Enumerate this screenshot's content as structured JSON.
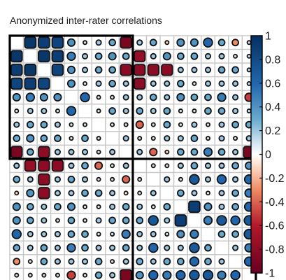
{
  "chart_data": {
    "type": "heatmap",
    "title": "Anonymized inter-rater correlations",
    "xlabel": "",
    "ylabel": "",
    "n": 18,
    "value_range": [
      -1,
      1
    ],
    "color_scale": {
      "stops": [
        {
          "value": -1,
          "color": "#67001f"
        },
        {
          "value": -0.6,
          "color": "#b2182b"
        },
        {
          "value": -0.3,
          "color": "#ef8a62"
        },
        {
          "value": -0.1,
          "color": "#fddbc7"
        },
        {
          "value": 0,
          "color": "#ffffff"
        },
        {
          "value": 0.1,
          "color": "#d1e5f0"
        },
        {
          "value": 0.3,
          "color": "#67a9cf"
        },
        {
          "value": 0.6,
          "color": "#2166ac"
        },
        {
          "value": 1,
          "color": "#053061"
        }
      ]
    },
    "legend_ticks": [
      "1",
      "0.8",
      "0.6",
      "0.4",
      "0.2",
      "0",
      "-0.2",
      "-0.4",
      "-0.6",
      "-0.8",
      "-1"
    ],
    "legend_tick_values": [
      1,
      0.8,
      0.6,
      0.4,
      0.2,
      0,
      -0.2,
      -0.4,
      -0.6,
      -0.8,
      -1
    ],
    "legend_position": "right",
    "blocks": [
      {
        "start": 1,
        "end": 9
      },
      {
        "start": 10,
        "end": 18
      }
    ],
    "matrix": [
      [
        1.0,
        0.95,
        0.9,
        0.85,
        0.4,
        0.1,
        0.2,
        0.3,
        -0.9,
        0.2,
        0.3,
        -0.1,
        0.4,
        0.4,
        0.6,
        0.3,
        -0.3,
        0.1
      ],
      [
        0.95,
        1.0,
        0.95,
        0.9,
        0.5,
        0.2,
        0.3,
        0.4,
        0.3,
        -0.75,
        0.2,
        0.4,
        0.3,
        0.3,
        0.2,
        0.2,
        0.1,
        0.1
      ],
      [
        0.9,
        0.95,
        1.0,
        0.85,
        0.4,
        0.2,
        0.3,
        0.3,
        -0.8,
        -0.8,
        -0.8,
        -0.8,
        0.2,
        0.2,
        0.2,
        0.3,
        0.3,
        0.1
      ],
      [
        0.85,
        0.9,
        0.85,
        1.0,
        0.4,
        0.1,
        0.2,
        0.3,
        0.2,
        -0.8,
        0.2,
        0.2,
        0.3,
        0.1,
        0.2,
        0.2,
        0.2,
        0.1
      ],
      [
        0.4,
        0.5,
        0.4,
        0.4,
        1.0,
        0.6,
        0.1,
        0.1,
        0.2,
        0.2,
        0.3,
        0.2,
        0.4,
        0.3,
        0.3,
        0.5,
        0.2,
        -0.5
      ],
      [
        0.1,
        0.2,
        0.2,
        0.1,
        0.6,
        1.0,
        0.1,
        0.3,
        0.2,
        0.3,
        0.2,
        0.3,
        0.1,
        0.1,
        0.3,
        0.3,
        0.2,
        0.1
      ],
      [
        0.2,
        0.3,
        0.3,
        0.2,
        0.1,
        0.1,
        1.0,
        0.1,
        0.1,
        -0.4,
        0.1,
        0.3,
        0.1,
        0.2,
        0.1,
        0.2,
        0.3,
        0.3
      ],
      [
        0.3,
        0.4,
        0.3,
        0.3,
        0.1,
        0.3,
        0.1,
        1.0,
        0.2,
        0.1,
        0.1,
        0.2,
        0.2,
        0.3,
        0.1,
        0.2,
        0.1,
        0.2
      ],
      [
        -0.9,
        0.3,
        -0.8,
        0.2,
        0.2,
        0.2,
        0.1,
        0.2,
        1.0,
        0.2,
        -0.4,
        -0.1,
        0.3,
        0.3,
        0.5,
        0.3,
        0.2,
        -0.9
      ],
      [
        0.2,
        -0.75,
        -0.8,
        -0.8,
        0.2,
        0.3,
        -0.4,
        0.1,
        0.2,
        1.0,
        0.1,
        0.1,
        0.2,
        0.3,
        0.2,
        0.2,
        0.3,
        0.4
      ],
      [
        0.3,
        0.2,
        -0.8,
        0.2,
        0.3,
        0.2,
        0.1,
        0.1,
        -0.4,
        0.1,
        1.0,
        0.2,
        0.1,
        0.7,
        0.2,
        0.6,
        0.2,
        0.6
      ],
      [
        -0.1,
        0.4,
        -0.8,
        0.2,
        0.2,
        0.3,
        0.3,
        0.2,
        -0.1,
        0.1,
        0.2,
        1.0,
        0.3,
        0.2,
        0.1,
        0.2,
        0.3,
        0.5
      ],
      [
        0.4,
        0.3,
        0.2,
        0.3,
        0.4,
        0.1,
        0.1,
        0.2,
        0.3,
        0.2,
        0.1,
        0.3,
        1.0,
        0.9,
        0.4,
        0.2,
        0.3,
        0.6
      ],
      [
        0.4,
        0.3,
        0.2,
        0.1,
        0.3,
        0.1,
        0.2,
        0.3,
        0.3,
        0.3,
        0.7,
        0.2,
        0.9,
        1.0,
        0.5,
        0.7,
        0.6,
        0.7
      ],
      [
        0.6,
        0.2,
        0.2,
        0.2,
        0.3,
        0.3,
        0.1,
        0.1,
        0.5,
        0.2,
        0.2,
        0.1,
        0.4,
        0.5,
        1.0,
        0.3,
        0.3,
        0.7
      ],
      [
        0.3,
        0.2,
        0.3,
        0.2,
        0.5,
        0.3,
        0.2,
        0.2,
        0.3,
        0.2,
        0.6,
        0.2,
        0.2,
        0.7,
        0.3,
        1.0,
        0.2,
        0.5
      ],
      [
        -0.3,
        0.1,
        0.3,
        0.2,
        0.2,
        0.2,
        0.3,
        0.1,
        0.2,
        0.3,
        0.2,
        0.3,
        0.3,
        0.6,
        0.3,
        0.2,
        1.0,
        0.6
      ],
      [
        0.1,
        0.1,
        0.1,
        0.1,
        -0.5,
        0.1,
        0.3,
        0.2,
        -0.9,
        0.4,
        0.6,
        0.5,
        0.6,
        0.7,
        0.7,
        0.5,
        0.6,
        1.0
      ]
    ]
  }
}
